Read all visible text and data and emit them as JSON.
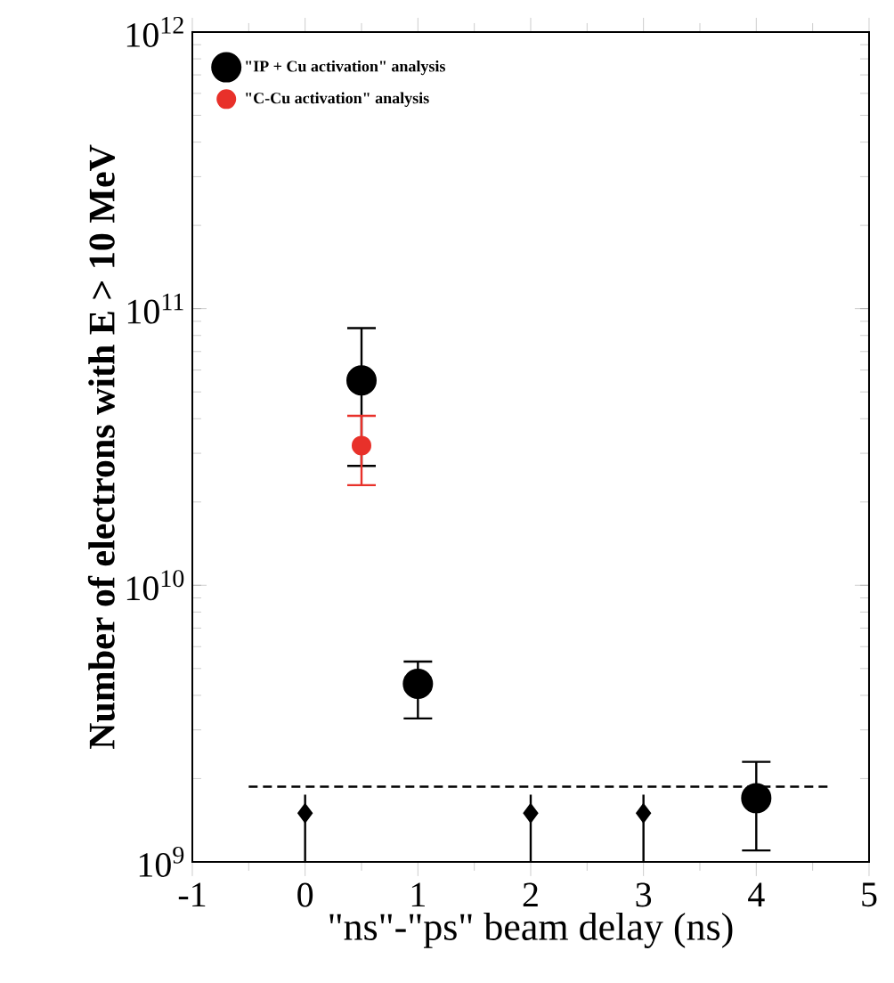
{
  "chart_data": {
    "type": "scatter",
    "xlabel": "\"ns\"-\"ps\" beam delay (ns)",
    "ylabel": "Number of electrons with E > 10 MeV",
    "log": "y",
    "xlim": [
      -1,
      5
    ],
    "ylim": [
      1000000000.0,
      1000000000000.0
    ],
    "xticks": [
      -1,
      0,
      1,
      2,
      3,
      4,
      5
    ],
    "yticks": [
      {
        "value": 1000000000.0,
        "label": "10$^{9}$"
      },
      {
        "value": 10000000000.0,
        "label": "10$^{10}$"
      },
      {
        "value": 100000000000.0,
        "label": "10$^{11}$"
      },
      {
        "value": 1000000000000.0,
        "label": "10$^{12}$"
      }
    ],
    "legend": "top left",
    "grid": false,
    "series": [
      {
        "name": "\"IP + Cu activation\" analysis",
        "color": "#000000",
        "marker": "circle",
        "x": [
          0.5,
          1,
          4
        ],
        "values": [
          55000000000.0,
          4400000000.0,
          1700000000.0
        ],
        "errors": [
          [
            27000000000.0,
            85000000000.0
          ],
          [
            3300000000.0,
            5300000000.0
          ],
          [
            1100000000.0,
            2300000000.0
          ]
        ]
      },
      {
        "name": "\"C-Cu activation\" analysis",
        "color": "#e8312a",
        "marker": "circle",
        "x": [
          0.5
        ],
        "values": [
          32000000000.0
        ],
        "errors": [
          [
            23000000000.0,
            41000000000.0
          ]
        ]
      },
      {
        "color": "#000000",
        "marker": "diamond",
        "x": [
          0,
          2,
          3
        ],
        "values": [
          1500000000.0,
          1500000000.0,
          1500000000.0
        ],
        "errors": [
          [
            1000000000.0,
            1750000000.0
          ],
          [
            1000000000.0,
            1750000000.0
          ],
          [
            1000000000.0,
            1750000000.0
          ]
        ]
      },
      {
        "type": "line",
        "color": "#000000",
        "line_style": "dashed",
        "marker": "none",
        "x": [
          -0.5,
          4.65
        ],
        "values": [
          1870000000.0,
          1870000000.0
        ]
      }
    ]
  }
}
